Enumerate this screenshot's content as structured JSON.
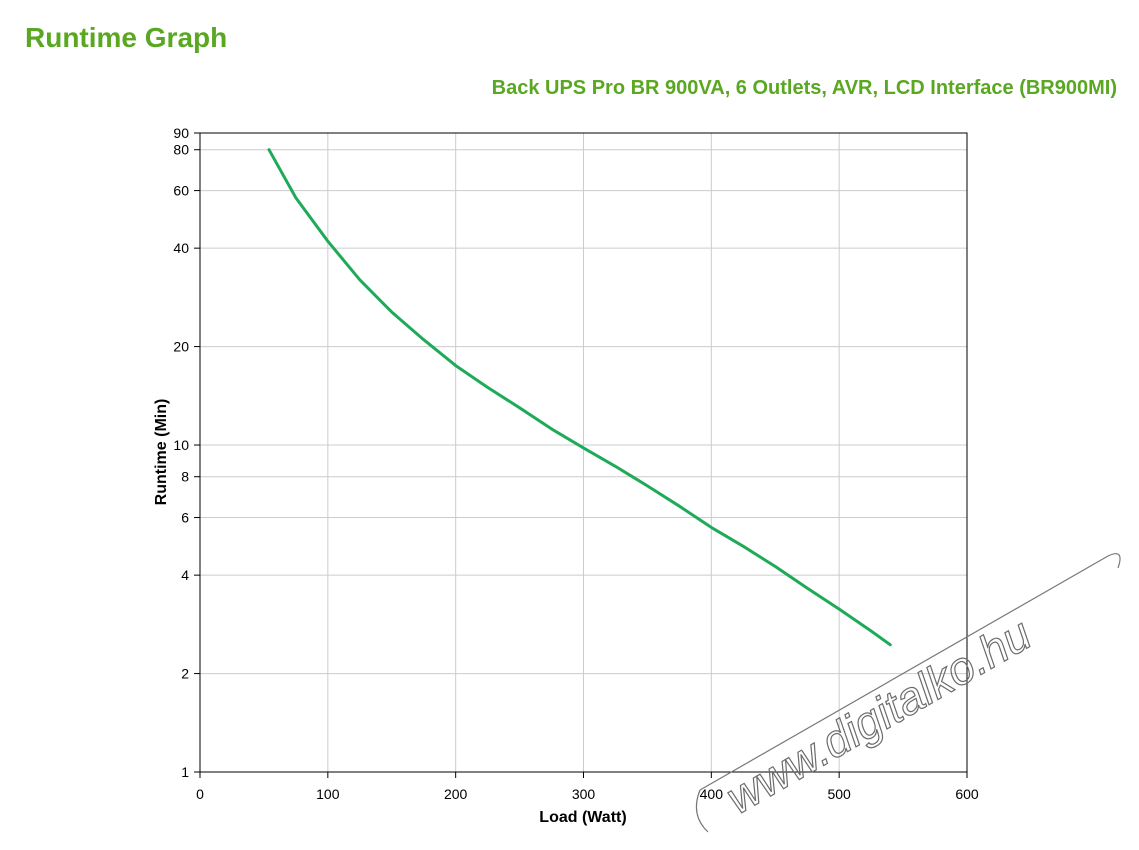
{
  "page": {
    "heading": "Runtime Graph"
  },
  "watermark": {
    "text": "www.digitalko.hu"
  },
  "colors": {
    "accent": "#5aa722",
    "series_line": "#1faa59",
    "grid": "#cccccc"
  },
  "chart_data": {
    "type": "line",
    "title": "Back UPS Pro BR 900VA, 6 Outlets, AVR, LCD Interface (BR900MI)",
    "xlabel": "Load (Watt)",
    "ylabel": "Runtime (Min)",
    "xlim": [
      0,
      600
    ],
    "ylim": [
      1,
      90
    ],
    "yscale": "log",
    "grid": true,
    "x_ticks": [
      0,
      100,
      200,
      300,
      400,
      500,
      600
    ],
    "y_ticks": [
      1,
      2,
      4,
      6,
      8,
      10,
      20,
      40,
      60,
      80,
      90
    ],
    "series": [
      {
        "x": [
          54,
          75,
          100,
          125,
          150,
          175,
          200,
          225,
          250,
          275,
          300,
          325,
          350,
          375,
          400,
          425,
          450,
          475,
          500,
          525,
          540
        ],
        "values": [
          80,
          57,
          42,
          32,
          25.5,
          21,
          17.5,
          15,
          13,
          11.2,
          9.8,
          8.6,
          7.5,
          6.5,
          5.6,
          4.9,
          4.25,
          3.65,
          3.15,
          2.7,
          2.45
        ]
      }
    ]
  }
}
